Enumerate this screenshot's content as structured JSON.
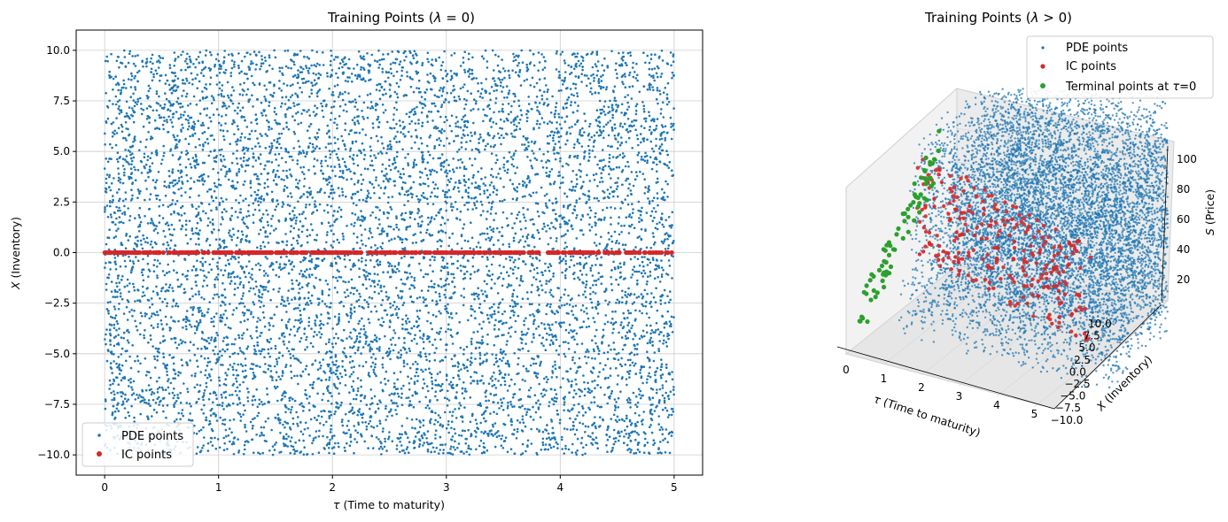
{
  "colors": {
    "pde": "#1f77b4",
    "ic": "#d62728",
    "terminal": "#2ca02c",
    "grid": "#cccccc",
    "pane": "#f2f2f2"
  },
  "chart_data": [
    {
      "type": "scatter",
      "title": "Training Points (λ = 0)",
      "xlabel": "τ (Time to maturity)",
      "ylabel": "X (Inventory)",
      "xlim": [
        -0.25,
        5.25
      ],
      "ylim": [
        -11,
        11
      ],
      "xticks": [
        "0",
        "1",
        "2",
        "3",
        "4",
        "5"
      ],
      "yticks": [
        "10.0",
        "7.5",
        "5.0",
        "2.5",
        "0.0",
        "−2.5",
        "−5.0",
        "−7.5",
        "−10.0"
      ],
      "grid": true,
      "legend_position": "lower-left",
      "series": [
        {
          "name": "PDE points",
          "color": "#1f77b4",
          "description_of_distribution": "uniform",
          "tau_range": [
            0,
            5
          ],
          "x_range": [
            -10,
            10
          ],
          "approx_count": 10000
        },
        {
          "name": "IC points",
          "color": "#d62728",
          "tau_range": [
            0,
            5
          ],
          "x_value": 0,
          "approx_count": 500
        }
      ]
    },
    {
      "type": "scatter",
      "title": "Training Points (λ > 0)",
      "projection": "3d",
      "xlabel": "τ (Time to maturity)",
      "ylabel": "X (Inventory)",
      "zlabel": "S (Price)",
      "xlim": [
        0,
        5
      ],
      "ylim": [
        -10,
        10
      ],
      "zlim": [
        0,
        100
      ],
      "xticks": [
        "0",
        "1",
        "2",
        "3",
        "4",
        "5"
      ],
      "yticks": [
        "10.0",
        "7.5",
        "5.0",
        "2.5",
        "0.0",
        "−2.5",
        "−5.0",
        "−7.5",
        "−10.0"
      ],
      "zticks": [
        "100",
        "80",
        "60",
        "40",
        "20"
      ],
      "legend_position": "top-right",
      "series": [
        {
          "name": "PDE points",
          "color": "#1f77b4",
          "tau_range": [
            0,
            5
          ],
          "x_range": [
            -10,
            10
          ],
          "s_range": [
            0,
            100
          ]
        },
        {
          "name": "IC points",
          "color": "#d62728",
          "tau_range": [
            0,
            5
          ],
          "x_value": 10
        },
        {
          "name": "Terminal points at τ=0",
          "color": "#2ca02c",
          "tau_value": 0
        }
      ]
    }
  ]
}
